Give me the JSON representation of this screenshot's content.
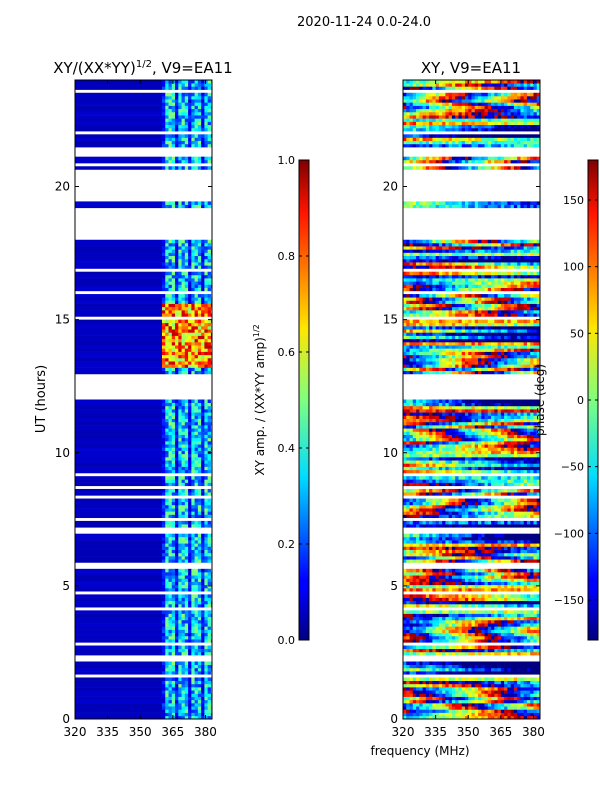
{
  "figure_title": "2020-11-24 0.0-24.0",
  "shared_xlabel": "frequency (MHz)",
  "chart_data": [
    {
      "type": "heatmap",
      "title_main": "XY/(XX*YY)",
      "title_exp": "1/2",
      "title_suffix": ", V9=EA11",
      "xlabel": "",
      "ylabel": "UT (hours)",
      "xlim": [
        320,
        383
      ],
      "ylim": [
        0,
        24
      ],
      "xticks": [
        320,
        335,
        350,
        365,
        380
      ],
      "yticks": [
        0,
        5,
        10,
        15,
        20
      ],
      "colormap": "jet",
      "colorbar": {
        "label_main": "XY amp. / (XX*YY amp)",
        "label_exp": "1/2",
        "range": [
          0.0,
          1.0
        ],
        "ticks": [
          "0.0",
          "0.2",
          "0.4",
          "0.6",
          "0.8",
          "1.0"
        ],
        "tick_values": [
          0.0,
          0.2,
          0.4,
          0.6,
          0.8,
          1.0
        ]
      },
      "data_gaps_ut": [
        [
          12.0,
          13.0
        ],
        [
          18.0,
          19.2
        ],
        [
          19.4,
          20.7
        ]
      ],
      "active_band_mhz": [
        360,
        381
      ],
      "typical_value_low_band": 0.05,
      "typical_value_high_band": 0.4,
      "high_value_period_ut": [
        13.2,
        15.6
      ]
    },
    {
      "type": "heatmap",
      "title_main": "XY, V9=EA11",
      "xlabel": "",
      "ylabel": "",
      "xlim": [
        320,
        383
      ],
      "ylim": [
        0,
        24
      ],
      "xticks": [
        320,
        335,
        350,
        365,
        380
      ],
      "yticks": [
        0,
        5,
        10,
        15,
        20
      ],
      "colormap": "jet",
      "colorbar": {
        "label_main": "phase (deg)",
        "range": [
          -180,
          180
        ],
        "ticks": [
          "−150",
          "−100",
          "−50",
          "0",
          "50",
          "100",
          "150"
        ],
        "tick_values": [
          -150,
          -100,
          -50,
          0,
          50,
          100,
          150
        ]
      },
      "data_gaps_ut": [
        [
          12.0,
          13.0
        ],
        [
          18.0,
          19.2
        ],
        [
          19.4,
          20.7
        ]
      ]
    }
  ]
}
